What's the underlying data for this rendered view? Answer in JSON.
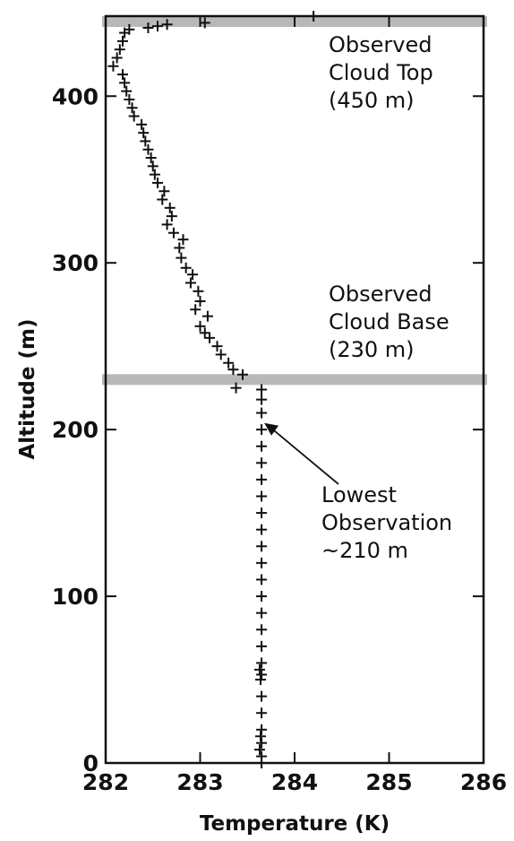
{
  "chart_data": {
    "type": "scatter",
    "title": "",
    "xlabel": "Temperature (K)",
    "ylabel": "Altitude (m)",
    "xlim": [
      282,
      286
    ],
    "ylim": [
      0,
      450
    ],
    "xticks": [
      282,
      283,
      284,
      285,
      286
    ],
    "yticks": [
      0,
      100,
      200,
      300,
      400
    ],
    "grid": false,
    "marker": "plus",
    "colors": {
      "marker": "#111111",
      "band": "#b8b8b8",
      "axis": "#111111"
    },
    "series": [
      {
        "points": [
          [
            283.65,
            0
          ],
          [
            283.65,
            4
          ],
          [
            283.63,
            8
          ],
          [
            283.65,
            12
          ],
          [
            283.64,
            16
          ],
          [
            283.65,
            20
          ],
          [
            283.65,
            30
          ],
          [
            283.65,
            40
          ],
          [
            283.64,
            50
          ],
          [
            283.65,
            53
          ],
          [
            283.63,
            56
          ],
          [
            283.65,
            60
          ],
          [
            283.65,
            70
          ],
          [
            283.65,
            80
          ],
          [
            283.65,
            90
          ],
          [
            283.65,
            100
          ],
          [
            283.65,
            110
          ],
          [
            283.65,
            120
          ],
          [
            283.65,
            130
          ],
          [
            283.65,
            140
          ],
          [
            283.65,
            150
          ],
          [
            283.65,
            160
          ],
          [
            283.65,
            170
          ],
          [
            283.65,
            180
          ],
          [
            283.65,
            190
          ],
          [
            283.65,
            200
          ],
          [
            283.65,
            210
          ],
          [
            283.65,
            218
          ],
          [
            283.38,
            225
          ],
          [
            283.65,
            224
          ],
          [
            283.45,
            233
          ],
          [
            283.35,
            236
          ],
          [
            283.3,
            240
          ],
          [
            283.22,
            245
          ],
          [
            283.18,
            250
          ],
          [
            283.1,
            255
          ],
          [
            283.05,
            258
          ],
          [
            283.0,
            262
          ],
          [
            283.08,
            268
          ],
          [
            282.95,
            272
          ],
          [
            283.0,
            277
          ],
          [
            282.98,
            283
          ],
          [
            282.9,
            288
          ],
          [
            282.92,
            293
          ],
          [
            282.85,
            297
          ],
          [
            282.8,
            303
          ],
          [
            282.78,
            309
          ],
          [
            282.82,
            314
          ],
          [
            282.72,
            318
          ],
          [
            282.65,
            323
          ],
          [
            282.7,
            328
          ],
          [
            282.68,
            333
          ],
          [
            282.6,
            338
          ],
          [
            282.62,
            343
          ],
          [
            282.55,
            348
          ],
          [
            282.52,
            353
          ],
          [
            282.5,
            358
          ],
          [
            282.48,
            363
          ],
          [
            282.45,
            368
          ],
          [
            282.42,
            373
          ],
          [
            282.4,
            378
          ],
          [
            282.38,
            383
          ],
          [
            282.3,
            388
          ],
          [
            282.28,
            393
          ],
          [
            282.25,
            398
          ],
          [
            282.22,
            403
          ],
          [
            282.2,
            408
          ],
          [
            282.18,
            413
          ],
          [
            282.08,
            418
          ],
          [
            282.12,
            423
          ],
          [
            282.15,
            428
          ],
          [
            282.18,
            433
          ],
          [
            282.2,
            438
          ],
          [
            282.25,
            440
          ],
          [
            282.45,
            441
          ],
          [
            282.55,
            442
          ],
          [
            282.65,
            443
          ],
          [
            283.05,
            444
          ],
          [
            284.2,
            448
          ]
        ]
      }
    ],
    "bands": [
      {
        "altitude": 450,
        "label": [
          "Observed",
          "Cloud Top",
          "(450 m)"
        ]
      },
      {
        "altitude": 230,
        "label": [
          "Observed",
          "Cloud Base",
          "(230 m)"
        ]
      }
    ],
    "annotation": {
      "lines": [
        "Lowest",
        "Observation",
        "~210 m"
      ],
      "arrow_to": [
        283.65,
        204
      ]
    }
  }
}
